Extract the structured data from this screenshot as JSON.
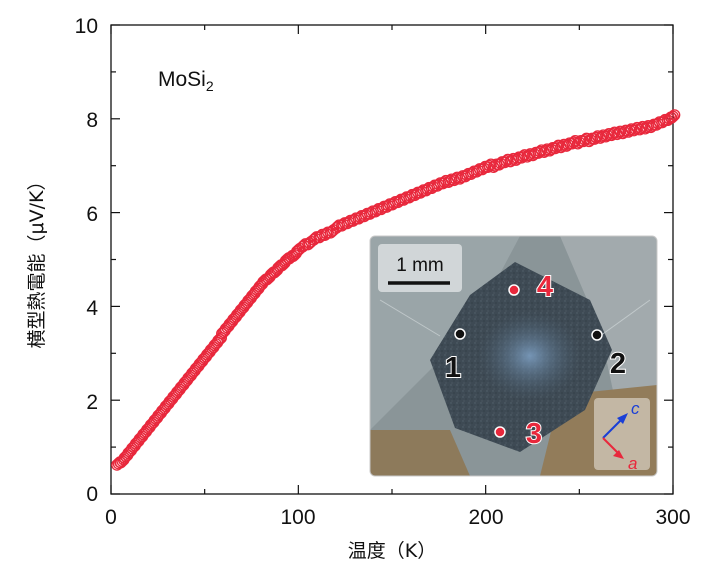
{
  "chart_data": {
    "type": "scatter",
    "title": "",
    "xlabel": "温度（K）",
    "ylabel": "横型熱電能（μV/K）",
    "xlim": [
      0,
      300
    ],
    "ylim": [
      0,
      10
    ],
    "x_ticks": [
      0,
      100,
      200,
      300
    ],
    "y_ticks": [
      0,
      2,
      4,
      6,
      8,
      10
    ],
    "grid": false,
    "marker_color": "#e8283c",
    "annotation": {
      "main": "MoSi",
      "sub": "2"
    },
    "series": [
      {
        "marker": "open-circle",
        "x": [
          4,
          6,
          8,
          10,
          12,
          14,
          16,
          18,
          20,
          22,
          24,
          26,
          28,
          30,
          32,
          34,
          36,
          38,
          40,
          42,
          44,
          46,
          48,
          50,
          52,
          54,
          56,
          58,
          60,
          62,
          64,
          66,
          68,
          70,
          72,
          74,
          76,
          78,
          80,
          82,
          84,
          86,
          88,
          90,
          92,
          94,
          96,
          98,
          100,
          103,
          106,
          109,
          112,
          115,
          118,
          121,
          124,
          127,
          130,
          133,
          136,
          139,
          142,
          145,
          148,
          151,
          154,
          157,
          160,
          163,
          166,
          169,
          172,
          175,
          178,
          181,
          184,
          187,
          190,
          193,
          196,
          199,
          202,
          205,
          208,
          211,
          214,
          217,
          220,
          223,
          226,
          229,
          232,
          235,
          238,
          241,
          244,
          247,
          250,
          253,
          256,
          259,
          262,
          265,
          268,
          271,
          274,
          277,
          280,
          283,
          286,
          289,
          292,
          295,
          298,
          300
        ],
        "y": [
          0.65,
          0.7,
          0.8,
          0.9,
          1.0,
          1.1,
          1.2,
          1.3,
          1.4,
          1.5,
          1.6,
          1.7,
          1.8,
          1.9,
          2.0,
          2.1,
          2.2,
          2.3,
          2.4,
          2.5,
          2.6,
          2.7,
          2.8,
          2.9,
          3.0,
          3.1,
          3.2,
          3.3,
          3.45,
          3.55,
          3.65,
          3.75,
          3.85,
          3.95,
          4.05,
          4.15,
          4.25,
          4.35,
          4.45,
          4.55,
          4.6,
          4.7,
          4.75,
          4.85,
          4.9,
          5.0,
          5.05,
          5.1,
          5.2,
          5.3,
          5.35,
          5.45,
          5.5,
          5.55,
          5.6,
          5.7,
          5.75,
          5.8,
          5.85,
          5.9,
          5.95,
          6.0,
          6.05,
          6.1,
          6.15,
          6.2,
          6.25,
          6.3,
          6.35,
          6.4,
          6.45,
          6.5,
          6.55,
          6.6,
          6.65,
          6.68,
          6.72,
          6.75,
          6.8,
          6.85,
          6.9,
          6.95,
          7.0,
          7.0,
          7.05,
          7.1,
          7.12,
          7.15,
          7.2,
          7.22,
          7.25,
          7.3,
          7.32,
          7.35,
          7.4,
          7.42,
          7.45,
          7.5,
          7.5,
          7.55,
          7.55,
          7.6,
          7.62,
          7.65,
          7.68,
          7.7,
          7.72,
          7.75,
          7.78,
          7.8,
          7.82,
          7.85,
          7.9,
          7.95,
          8.0,
          8.05
        ]
      }
    ],
    "inset": {
      "scale_bar": "1 mm",
      "points": [
        {
          "label": "1",
          "color": "#111111"
        },
        {
          "label": "2",
          "color": "#111111"
        },
        {
          "label": "3",
          "color": "#e8283c"
        },
        {
          "label": "4",
          "color": "#e8283c"
        }
      ],
      "axes": [
        {
          "label": "c",
          "color": "#1a3fd6"
        },
        {
          "label": "a",
          "color": "#e8283c"
        }
      ]
    }
  }
}
